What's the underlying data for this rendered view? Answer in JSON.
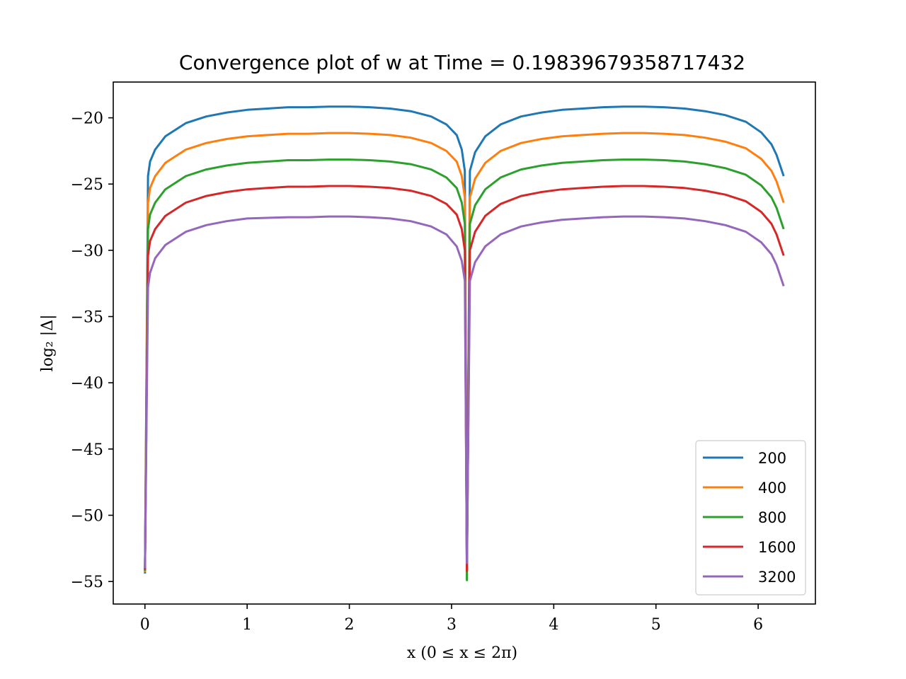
{
  "chart_data": {
    "type": "line",
    "title": "Convergence plot of w at Time = 0.19839679358717432",
    "xlabel": "x (0 ≤ x ≤ 2π)",
    "ylabel": "log₂ |Δ|",
    "xlim": [
      -0.31,
      6.56
    ],
    "ylim": [
      -56.7,
      -17.3
    ],
    "xticks": [
      0,
      1,
      2,
      3,
      4,
      5,
      6
    ],
    "xtick_labels": [
      "0",
      "1",
      "2",
      "3",
      "4",
      "5",
      "6"
    ],
    "yticks": [
      -20,
      -25,
      -30,
      -35,
      -40,
      -45,
      -50,
      -55
    ],
    "ytick_labels": [
      "−20",
      "−25",
      "−30",
      "−35",
      "−40",
      "−45",
      "−50",
      "−55"
    ],
    "grid": false,
    "legend_position": "lower-right",
    "x": [
      0.0,
      0.03,
      0.05,
      0.1,
      0.2,
      0.4,
      0.6,
      0.8,
      1.0,
      1.2,
      1.4,
      1.6,
      1.8,
      2.0,
      2.2,
      2.4,
      2.6,
      2.8,
      2.95,
      3.05,
      3.1,
      3.13,
      3.15,
      3.18,
      3.23,
      3.33,
      3.48,
      3.68,
      3.88,
      4.08,
      4.28,
      4.48,
      4.68,
      4.88,
      5.08,
      5.28,
      5.48,
      5.68,
      5.88,
      6.03,
      6.13,
      6.18,
      6.25
    ],
    "series": [
      {
        "name": "200",
        "color": "#1f77b4",
        "values": [
          -54.4,
          -24.4,
          -23.3,
          -22.4,
          -21.4,
          -20.4,
          -19.9,
          -19.6,
          -19.4,
          -19.3,
          -19.2,
          -19.2,
          -19.15,
          -19.15,
          -19.2,
          -19.3,
          -19.5,
          -19.9,
          -20.5,
          -21.3,
          -22.4,
          -24.0,
          -54.0,
          -24.0,
          -22.6,
          -21.4,
          -20.5,
          -19.9,
          -19.6,
          -19.4,
          -19.3,
          -19.2,
          -19.15,
          -19.15,
          -19.2,
          -19.3,
          -19.5,
          -19.8,
          -20.3,
          -21.1,
          -22.0,
          -22.8,
          -24.4
        ]
      },
      {
        "name": "400",
        "color": "#ff7f0e",
        "values": [
          -54.3,
          -26.4,
          -25.3,
          -24.4,
          -23.4,
          -22.4,
          -21.9,
          -21.6,
          -21.4,
          -21.3,
          -21.2,
          -21.2,
          -21.15,
          -21.15,
          -21.2,
          -21.3,
          -21.5,
          -21.9,
          -22.5,
          -23.3,
          -24.4,
          -26.0,
          -54.3,
          -26.0,
          -24.6,
          -23.4,
          -22.5,
          -21.9,
          -21.6,
          -21.4,
          -21.3,
          -21.2,
          -21.15,
          -21.15,
          -21.2,
          -21.3,
          -21.5,
          -21.8,
          -22.3,
          -23.1,
          -24.0,
          -24.8,
          -26.4
        ]
      },
      {
        "name": "800",
        "color": "#2ca02c",
        "values": [
          -54.2,
          -28.4,
          -27.3,
          -26.4,
          -25.4,
          -24.4,
          -23.9,
          -23.6,
          -23.4,
          -23.3,
          -23.2,
          -23.2,
          -23.15,
          -23.15,
          -23.2,
          -23.3,
          -23.5,
          -23.9,
          -24.5,
          -25.3,
          -26.4,
          -28.0,
          -54.9,
          -28.0,
          -26.6,
          -25.4,
          -24.5,
          -23.9,
          -23.6,
          -23.4,
          -23.3,
          -23.2,
          -23.15,
          -23.15,
          -23.2,
          -23.3,
          -23.5,
          -23.8,
          -24.3,
          -25.1,
          -26.0,
          -26.8,
          -28.4
        ]
      },
      {
        "name": "1600",
        "color": "#d62728",
        "values": [
          -54.1,
          -30.4,
          -29.3,
          -28.4,
          -27.4,
          -26.4,
          -25.9,
          -25.6,
          -25.4,
          -25.3,
          -25.2,
          -25.2,
          -25.15,
          -25.15,
          -25.2,
          -25.3,
          -25.5,
          -25.9,
          -26.5,
          -27.3,
          -28.4,
          -30.0,
          -54.2,
          -30.0,
          -28.6,
          -27.4,
          -26.5,
          -25.9,
          -25.6,
          -25.4,
          -25.3,
          -25.2,
          -25.15,
          -25.15,
          -25.2,
          -25.3,
          -25.5,
          -25.8,
          -26.3,
          -27.1,
          -28.0,
          -28.8,
          -30.4
        ]
      },
      {
        "name": "3200",
        "color": "#9467bd",
        "values": [
          -54.0,
          -32.8,
          -31.7,
          -30.6,
          -29.6,
          -28.6,
          -28.1,
          -27.8,
          -27.6,
          -27.55,
          -27.5,
          -27.5,
          -27.45,
          -27.45,
          -27.5,
          -27.6,
          -27.8,
          -28.2,
          -28.8,
          -29.7,
          -30.8,
          -32.3,
          -53.6,
          -32.3,
          -30.9,
          -29.7,
          -28.8,
          -28.2,
          -27.9,
          -27.7,
          -27.6,
          -27.5,
          -27.45,
          -27.45,
          -27.5,
          -27.6,
          -27.8,
          -28.1,
          -28.6,
          -29.4,
          -30.3,
          -31.1,
          -32.7
        ]
      }
    ]
  }
}
